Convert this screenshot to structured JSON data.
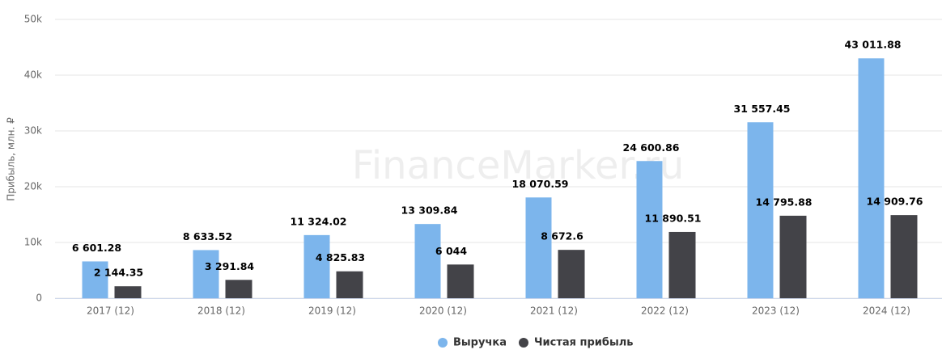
{
  "chart_data": {
    "type": "bar",
    "y_label": "Прибыль, млн. ₽",
    "watermark": "FinanceMarker.ru",
    "categories": [
      "2017 (12)",
      "2018 (12)",
      "2019 (12)",
      "2020 (12)",
      "2021 (12)",
      "2022 (12)",
      "2023 (12)",
      "2024 (12)"
    ],
    "series": [
      {
        "name": "Выручка",
        "color": "#7cb5ec",
        "values": [
          6601.28,
          8633.52,
          11324.02,
          13309.84,
          18070.59,
          24600.86,
          31557.45,
          43011.88
        ],
        "value_labels": [
          "6 601.28",
          "8 633.52",
          "11 324.02",
          "13 309.84",
          "18 070.59",
          "24 600.86",
          "31 557.45",
          "43 011.88"
        ]
      },
      {
        "name": "Чистая прибыль",
        "color": "#434348",
        "values": [
          2144.35,
          3291.84,
          4825.83,
          6044,
          8672.6,
          11890.51,
          14795.88,
          14909.76
        ],
        "value_labels": [
          "2 144.35",
          "3 291.84",
          "4 825.83",
          "6 044",
          "8 672.6",
          "11 890.51",
          "14 795.88",
          "14 909.76"
        ]
      }
    ],
    "ylim": [
      0,
      50000
    ],
    "yticks": [
      0,
      {
        "value": 10000,
        "label": "10k"
      },
      {
        "value": 20000,
        "label": "20k"
      },
      {
        "value": 30000,
        "label": "30k"
      },
      {
        "value": 40000,
        "label": "40k"
      },
      {
        "value": 50000,
        "label": "50k"
      }
    ],
    "grid": true,
    "legend": "bottom"
  }
}
